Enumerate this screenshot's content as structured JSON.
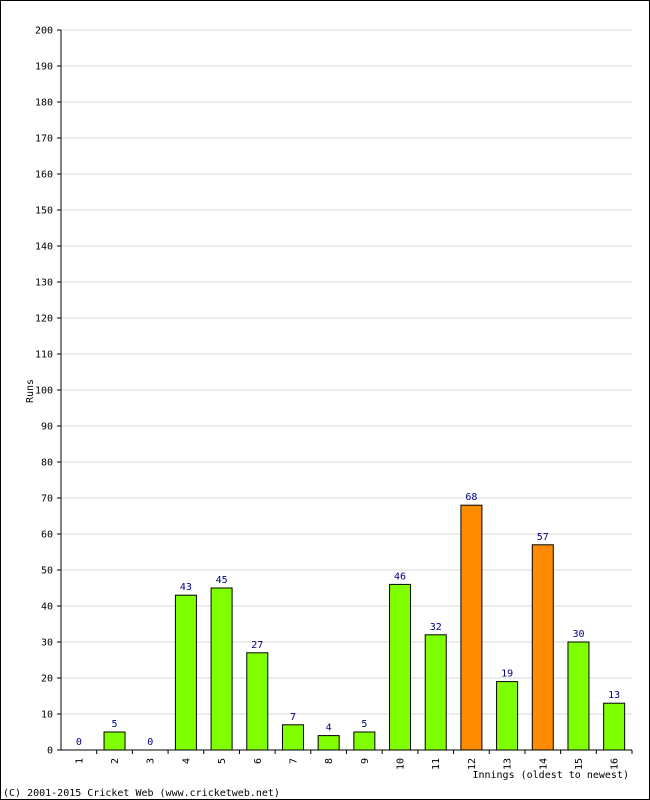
{
  "chart_data": {
    "type": "bar",
    "ylabel": "Runs",
    "xlabel": "Innings (oldest to newest)",
    "ylim": [
      0,
      200
    ],
    "ytick_step": 10,
    "grid": true,
    "categories": [
      "1",
      "2",
      "3",
      "4",
      "5",
      "6",
      "7",
      "8",
      "9",
      "10",
      "11",
      "12",
      "13",
      "14",
      "15",
      "16"
    ],
    "values": [
      0,
      5,
      0,
      43,
      45,
      27,
      7,
      4,
      5,
      46,
      32,
      68,
      19,
      57,
      30,
      13
    ],
    "highlight": [
      false,
      false,
      false,
      false,
      false,
      false,
      false,
      false,
      false,
      false,
      false,
      true,
      false,
      true,
      false,
      false
    ],
    "colors": {
      "bar": "#80ff00",
      "bar_highlight": "#ff8c00",
      "bar_stroke": "#000000",
      "grid": "#d9d9d9",
      "data_label": "#000080"
    }
  },
  "footer": {
    "copyright": "(C) 2001-2015 Cricket Web (www.cricketweb.net)"
  }
}
